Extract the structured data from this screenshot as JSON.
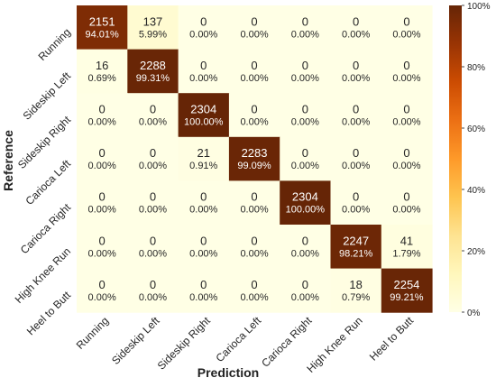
{
  "chart_data": {
    "type": "heatmap",
    "title": "",
    "xlabel": "Prediction",
    "ylabel": "Reference",
    "x_categories": [
      "Running",
      "Sideskip Left",
      "Sideskip Right",
      "Carioca Left",
      "Carioca Right",
      "High Knee Run",
      "Heel to Butt"
    ],
    "y_categories": [
      "Running",
      "Sideskip Left",
      "Sideskip Right",
      "Carioca Left",
      "Carioca Right",
      "High Knee Run",
      "Heel to Butt"
    ],
    "counts": [
      [
        2151,
        137,
        0,
        0,
        0,
        0,
        0
      ],
      [
        16,
        2288,
        0,
        0,
        0,
        0,
        0
      ],
      [
        0,
        0,
        2304,
        0,
        0,
        0,
        0
      ],
      [
        0,
        0,
        21,
        2283,
        0,
        0,
        0
      ],
      [
        0,
        0,
        0,
        0,
        2304,
        0,
        0
      ],
      [
        0,
        0,
        0,
        0,
        0,
        2247,
        41
      ],
      [
        0,
        0,
        0,
        0,
        0,
        18,
        2254
      ]
    ],
    "percent_labels": [
      [
        "94.01%",
        "5.99%",
        "0.00%",
        "0.00%",
        "0.00%",
        "0.00%",
        "0.00%"
      ],
      [
        "0.69%",
        "99.31%",
        "0.00%",
        "0.00%",
        "0.00%",
        "0.00%",
        "0.00%"
      ],
      [
        "0.00%",
        "0.00%",
        "100.00%",
        "0.00%",
        "0.00%",
        "0.00%",
        "0.00%"
      ],
      [
        "0.00%",
        "0.00%",
        "0.91%",
        "99.09%",
        "0.00%",
        "0.00%",
        "0.00%"
      ],
      [
        "0.00%",
        "0.00%",
        "0.00%",
        "0.00%",
        "100.00%",
        "0.00%",
        "0.00%"
      ],
      [
        "0.00%",
        "0.00%",
        "0.00%",
        "0.00%",
        "0.00%",
        "98.21%",
        "1.79%"
      ],
      [
        "0.00%",
        "0.00%",
        "0.00%",
        "0.00%",
        "0.00%",
        "0.79%",
        "99.21%"
      ]
    ],
    "colorbar": {
      "range": [
        0,
        100
      ],
      "ticks": [
        "0%",
        "20%",
        "40%",
        "60%",
        "80%",
        "100%"
      ],
      "colormap": "YlOrBr",
      "low_color": "#ffffe5",
      "high_color": "#662506"
    },
    "grid": false
  }
}
